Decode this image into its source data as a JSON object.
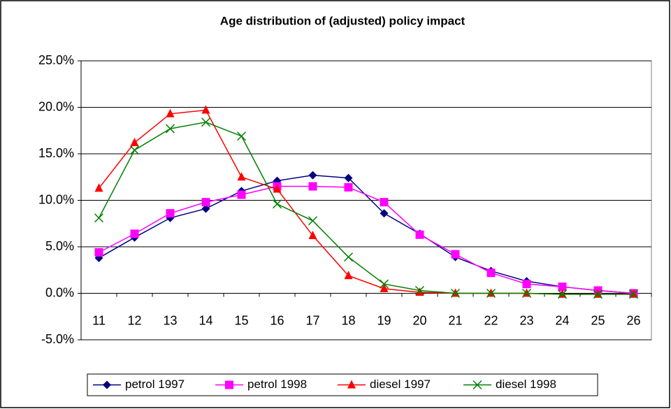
{
  "chart_data": {
    "type": "line",
    "title": "Age distribution of (adjusted) policy impact",
    "categories": [
      "11",
      "12",
      "13",
      "14",
      "15",
      "16",
      "17",
      "18",
      "19",
      "20",
      "21",
      "22",
      "23",
      "24",
      "25",
      "26"
    ],
    "series": [
      {
        "name": "petrol 1997",
        "color": "#000080",
        "marker": "diamond",
        "values": [
          3.8,
          6.0,
          8.1,
          9.1,
          11.0,
          12.1,
          12.7,
          12.4,
          8.6,
          6.4,
          3.9,
          2.4,
          1.3,
          0.7,
          0.3,
          0.0
        ]
      },
      {
        "name": "petrol 1998",
        "color": "#ff00ff",
        "marker": "square",
        "values": [
          4.4,
          6.4,
          8.6,
          9.8,
          10.6,
          11.5,
          11.5,
          11.4,
          9.8,
          6.3,
          4.2,
          2.2,
          1.0,
          0.7,
          0.3,
          0.0
        ]
      },
      {
        "name": "diesel 1997",
        "color": "#ff0000",
        "marker": "triangle",
        "values": [
          11.3,
          16.2,
          19.3,
          19.7,
          12.5,
          11.2,
          6.2,
          1.9,
          0.5,
          0.1,
          0.0,
          0.0,
          0.0,
          -0.1,
          -0.1,
          -0.1
        ]
      },
      {
        "name": "diesel 1998",
        "color": "#008000",
        "marker": "x",
        "values": [
          8.1,
          15.4,
          17.7,
          18.4,
          16.9,
          9.6,
          7.8,
          3.9,
          1.0,
          0.3,
          0.0,
          0.0,
          0.0,
          -0.1,
          -0.1,
          -0.1
        ]
      }
    ],
    "ylim": [
      -5,
      25
    ],
    "yticks": [
      {
        "value": -5,
        "label": "-5.0%"
      },
      {
        "value": 0,
        "label": "0.0%"
      },
      {
        "value": 5,
        "label": "5.0%"
      },
      {
        "value": 10,
        "label": "10.0%"
      },
      {
        "value": 15,
        "label": "15.0%"
      },
      {
        "value": 20,
        "label": "20.0%"
      },
      {
        "value": 25,
        "label": "25.0%"
      }
    ],
    "grid": true,
    "legend": "bottom"
  }
}
